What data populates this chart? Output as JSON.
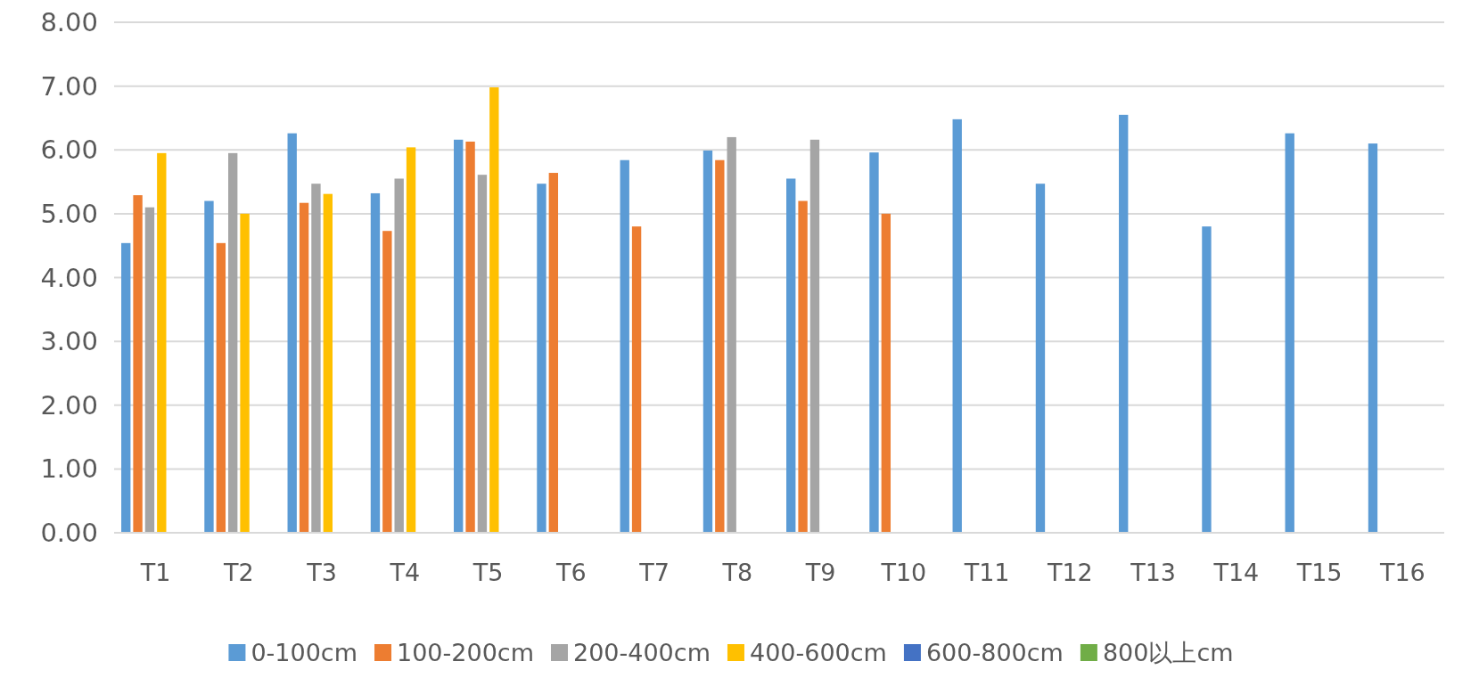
{
  "chart_data": {
    "type": "bar",
    "categories": [
      "T1",
      "T2",
      "T3",
      "T4",
      "T5",
      "T6",
      "T7",
      "T8",
      "T9",
      "T10",
      "T11",
      "T12",
      "T13",
      "T14",
      "T15",
      "T16"
    ],
    "series": [
      {
        "name": "0-100cm",
        "color": "#5b9bd5",
        "values": [
          4.54,
          5.2,
          6.26,
          5.32,
          6.16,
          5.47,
          5.84,
          5.99,
          5.55,
          5.96,
          6.48,
          5.47,
          6.55,
          4.8,
          6.26,
          6.1
        ]
      },
      {
        "name": "100-200cm",
        "color": "#ed7d31",
        "values": [
          5.29,
          4.54,
          5.17,
          4.73,
          6.13,
          5.64,
          4.8,
          5.84,
          5.2,
          5.0,
          null,
          null,
          null,
          null,
          null,
          null
        ]
      },
      {
        "name": "200-400cm",
        "color": "#a5a5a5",
        "values": [
          5.1,
          5.95,
          5.47,
          5.55,
          5.61,
          null,
          null,
          6.2,
          6.16,
          null,
          null,
          null,
          null,
          null,
          null,
          null
        ]
      },
      {
        "name": "400-600cm",
        "color": "#ffc000",
        "values": [
          5.95,
          5.0,
          5.31,
          6.04,
          6.98,
          null,
          null,
          null,
          null,
          null,
          null,
          null,
          null,
          null,
          null,
          null
        ]
      },
      {
        "name": "600-800cm",
        "color": "#4472c4",
        "values": [
          null,
          null,
          null,
          null,
          null,
          null,
          null,
          null,
          null,
          null,
          null,
          null,
          null,
          null,
          null,
          null
        ]
      },
      {
        "name": "800以上cm",
        "color": "#70ad47",
        "values": [
          null,
          null,
          null,
          null,
          null,
          null,
          null,
          null,
          null,
          null,
          null,
          null,
          null,
          null,
          null,
          null
        ]
      }
    ],
    "ylim": [
      0,
      8
    ],
    "yticks": [
      {
        "value": 0,
        "label": "0.00"
      },
      {
        "value": 1,
        "label": "1.00"
      },
      {
        "value": 2,
        "label": "2.00"
      },
      {
        "value": 3,
        "label": "3.00"
      },
      {
        "value": 4,
        "label": "4.00"
      },
      {
        "value": 5,
        "label": "5.00"
      },
      {
        "value": 6,
        "label": "6.00"
      },
      {
        "value": 7,
        "label": "7.00"
      },
      {
        "value": 8,
        "label": "8.00"
      }
    ],
    "grid": "y",
    "legend": "bottom"
  }
}
